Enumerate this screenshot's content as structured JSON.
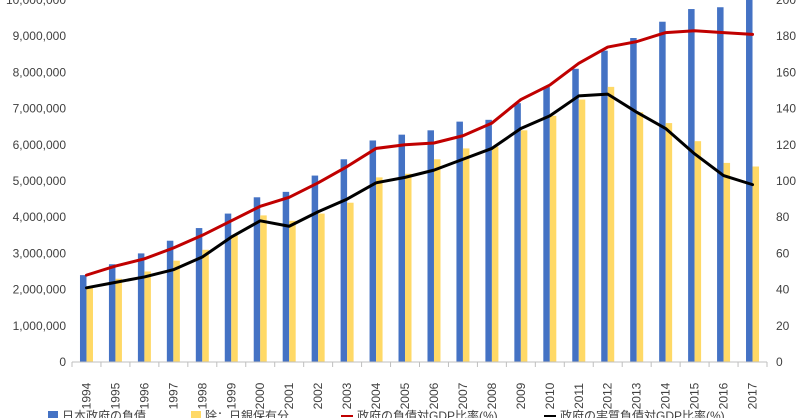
{
  "chart_data": {
    "type": "bar",
    "categories": [
      "1994",
      "1995",
      "1996",
      "1997",
      "1998",
      "1999",
      "2000",
      "2001",
      "2002",
      "2003",
      "2004",
      "2005",
      "2006",
      "2007",
      "2008",
      "2009",
      "2010",
      "2011",
      "2012",
      "2013",
      "2014",
      "2015",
      "2016",
      "2017"
    ],
    "y_left": {
      "ylim": [
        0,
        10000000
      ],
      "ticks": [
        "0",
        "1,000,000",
        "2,000,000",
        "3,000,000",
        "4,000,000",
        "5,000,000",
        "6,000,000",
        "7,000,000",
        "8,000,000",
        "9,000,000",
        "10,000,000"
      ]
    },
    "y_right": {
      "ylim": [
        0,
        200
      ],
      "ticks": [
        "0",
        "20",
        "40",
        "60",
        "80",
        "100",
        "120",
        "140",
        "160",
        "180",
        "200"
      ]
    },
    "series": [
      {
        "name": "日本政府の負債",
        "type": "bar",
        "axis": "left",
        "color": "#4472C4",
        "values": [
          2400000,
          2700000,
          3000000,
          3350000,
          3700000,
          4100000,
          4550000,
          4700000,
          5150000,
          5600000,
          6120000,
          6280000,
          6400000,
          6640000,
          6690000,
          7150000,
          7600000,
          8100000,
          8600000,
          8950000,
          9400000,
          9750000,
          9800000,
          10000000
        ]
      },
      {
        "name": "除：日銀保有分",
        "type": "bar",
        "axis": "left",
        "color": "#FFD966",
        "values": [
          2050000,
          2300000,
          2500000,
          2800000,
          3100000,
          3500000,
          4050000,
          3900000,
          4100000,
          4400000,
          5100000,
          5200000,
          5600000,
          5900000,
          5950000,
          6400000,
          6800000,
          7250000,
          7600000,
          6900000,
          6600000,
          6100000,
          5500000,
          5400000
        ]
      },
      {
        "name": "政府の負債対GDP比率(%)",
        "type": "line",
        "axis": "right",
        "color": "#C00000",
        "values": [
          48,
          53,
          57,
          63,
          70,
          78,
          86,
          91,
          99,
          108,
          118,
          120,
          121,
          125,
          132,
          145,
          153,
          165,
          174,
          177,
          182,
          183,
          182,
          181
        ]
      },
      {
        "name": "政府の実質負債対GDP比率(%)",
        "type": "line",
        "axis": "right",
        "color": "#000000",
        "values": [
          41,
          44,
          47,
          51,
          58,
          69,
          78,
          75,
          83,
          90,
          99,
          102,
          106,
          112,
          118,
          129,
          136,
          147,
          148,
          138,
          129,
          115,
          103,
          98
        ]
      }
    ],
    "legend": "bottom",
    "grid": false
  }
}
